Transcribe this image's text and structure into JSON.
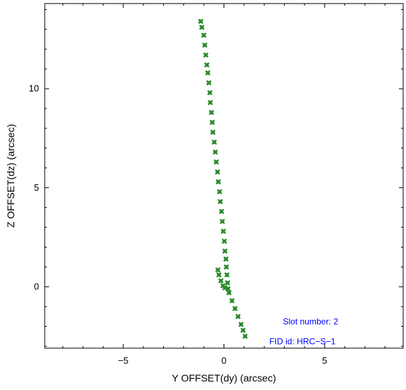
{
  "chart_data": {
    "type": "scatter",
    "title": "",
    "xlabel": "Y OFFSET(dy) (arcsec)",
    "ylabel": "Z OFFSET(dz) (arcsec)",
    "xlim": [
      -8.9,
      8.9
    ],
    "ylim": [
      -3.1,
      14.3
    ],
    "x_ticks": [
      -5,
      0,
      5
    ],
    "x_tick_labels": [
      "−5",
      "0",
      "5"
    ],
    "y_ticks": [
      0,
      5,
      10
    ],
    "y_tick_labels": [
      "0",
      "5",
      "10"
    ],
    "grid": false,
    "legend": "none",
    "series": [
      {
        "color": "#2a8a2a",
        "marker": "x",
        "points": [
          [
            -1.15,
            13.4
          ],
          [
            -1.1,
            13.1
          ],
          [
            -1.0,
            12.7
          ],
          [
            -0.95,
            12.2
          ],
          [
            -0.9,
            11.7
          ],
          [
            -0.85,
            11.2
          ],
          [
            -0.8,
            10.8
          ],
          [
            -0.75,
            10.3
          ],
          [
            -0.7,
            9.8
          ],
          [
            -0.68,
            9.3
          ],
          [
            -0.62,
            8.8
          ],
          [
            -0.58,
            8.3
          ],
          [
            -0.55,
            7.8
          ],
          [
            -0.48,
            7.3
          ],
          [
            -0.43,
            6.8
          ],
          [
            -0.38,
            6.3
          ],
          [
            -0.32,
            5.8
          ],
          [
            -0.28,
            5.3
          ],
          [
            -0.22,
            4.8
          ],
          [
            -0.18,
            4.3
          ],
          [
            -0.12,
            3.8
          ],
          [
            -0.08,
            3.3
          ],
          [
            -0.03,
            2.8
          ],
          [
            0.02,
            2.3
          ],
          [
            0.05,
            1.8
          ],
          [
            0.1,
            1.4
          ],
          [
            0.12,
            1.0
          ],
          [
            0.15,
            0.6
          ],
          [
            0.18,
            0.2
          ],
          [
            0.2,
            -0.1
          ],
          [
            -0.3,
            0.85
          ],
          [
            -0.25,
            0.6
          ],
          [
            -0.15,
            0.3
          ],
          [
            -0.05,
            0.05
          ],
          [
            0.05,
            -0.05
          ],
          [
            0.25,
            -0.3
          ],
          [
            0.4,
            -0.7
          ],
          [
            0.55,
            -1.1
          ],
          [
            0.7,
            -1.5
          ],
          [
            0.85,
            -1.9
          ],
          [
            0.95,
            -2.2
          ],
          [
            1.05,
            -2.5
          ]
        ]
      }
    ],
    "annotations": [
      {
        "text": "Slot number: 2",
        "x": 4.3,
        "y": -1.9,
        "color": "#0000ff"
      },
      {
        "text": "FID id: HRC−S−1",
        "x": 3.9,
        "y": -2.9,
        "color": "#0000ff"
      }
    ]
  }
}
